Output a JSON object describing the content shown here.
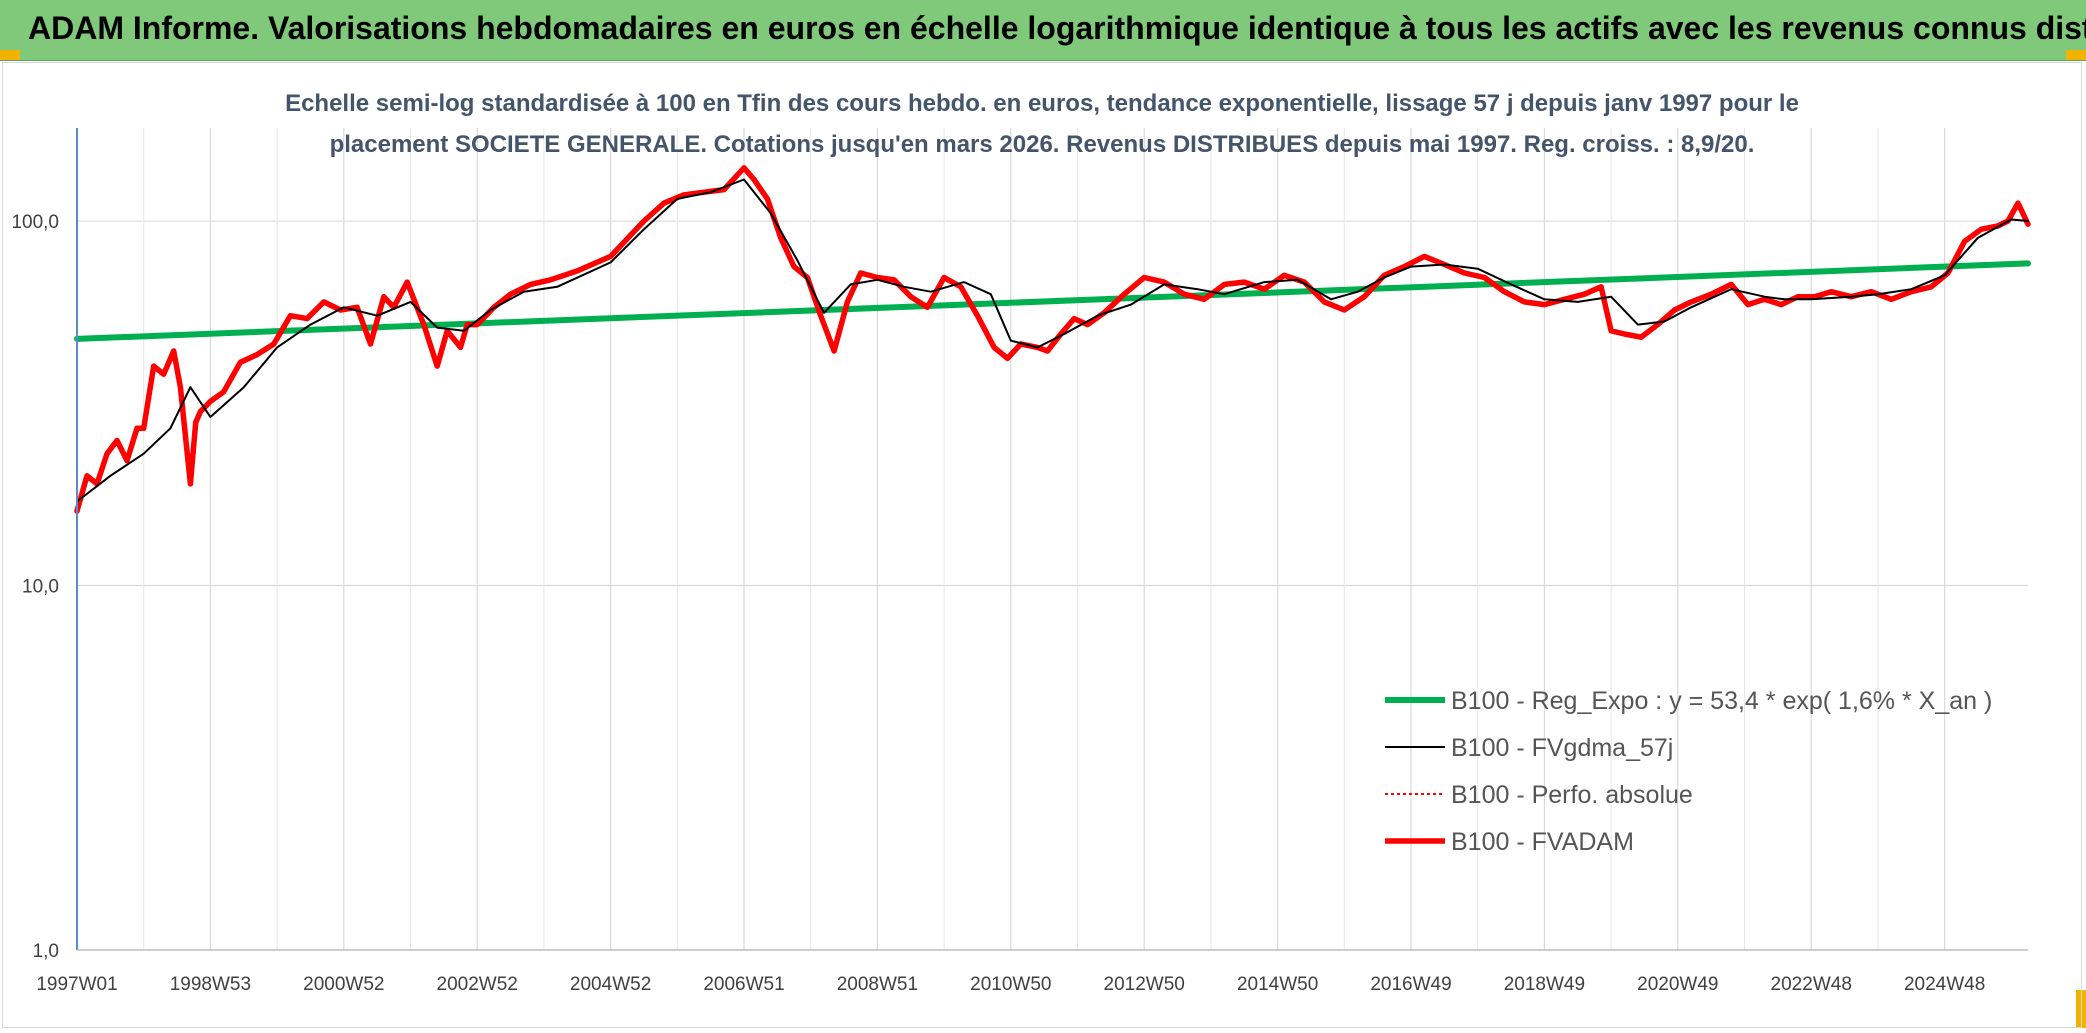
{
  "header": {
    "title": "ADAM Informe. Valorisations hebdomadaires en euros en échelle logarithmique identique à tous les actifs avec les revenus connus distribués"
  },
  "colors": {
    "banner": "#80c97a",
    "accent_corner": "#f2b300",
    "reg_line": "#00b050",
    "fvgdma_line": "#000000",
    "perfo_line": "#ff0000",
    "fvadam_line": "#ff0000"
  },
  "chart_data": {
    "type": "line",
    "title_lines": [
      "Echelle semi-log standardisée à 100 en Tfin des cours hebdo. en euros, tendance exponentielle, lissage 57 j depuis janv 1997 pour le",
      "placement SOCIETE GENERALE. Cotations jusqu'en mars 2026. Revenus DISTRIBUES depuis mai 1997. Reg. croiss. : 8,9/20."
    ],
    "y_scale": "log",
    "ylim": [
      1,
      180
    ],
    "y_ticks": [
      {
        "value": 1,
        "label": "1,0"
      },
      {
        "value": 10,
        "label": "10,0"
      },
      {
        "value": 100,
        "label": "100,0"
      }
    ],
    "xlim": [
      1997.0,
      2026.25
    ],
    "x_ticks": [
      {
        "value": 1997.0,
        "label": "1997W01"
      },
      {
        "value": 1999.0,
        "label": "1998W53"
      },
      {
        "value": 2001.0,
        "label": "2000W52"
      },
      {
        "value": 2003.0,
        "label": "2002W52"
      },
      {
        "value": 2005.0,
        "label": "2004W52"
      },
      {
        "value": 2007.0,
        "label": "2006W51"
      },
      {
        "value": 2009.0,
        "label": "2008W51"
      },
      {
        "value": 2011.0,
        "label": "2010W50"
      },
      {
        "value": 2013.0,
        "label": "2012W50"
      },
      {
        "value": 2015.0,
        "label": "2014W50"
      },
      {
        "value": 2017.0,
        "label": "2016W49"
      },
      {
        "value": 2019.0,
        "label": "2018W49"
      },
      {
        "value": 2021.0,
        "label": "2020W49"
      },
      {
        "value": 2023.0,
        "label": "2022W48"
      },
      {
        "value": 2025.0,
        "label": "2024W48"
      }
    ],
    "grid": "vertical",
    "legend_position": "bottom-right",
    "series": [
      {
        "name": "B100 - Reg_Expo : y = 53,4 * exp( 1,6% *  X_an )",
        "color": "#00b050",
        "style": "solid-thick",
        "x": [
          1997.0,
          2026.25
        ],
        "y": [
          47.5,
          76.5
        ]
      },
      {
        "name": "B100 - FVgdma_57j",
        "color": "#000000",
        "style": "solid-thin",
        "x": [
          1997.0,
          1997.5,
          1998.0,
          1998.4,
          1998.7,
          1999.0,
          1999.5,
          2000.0,
          2000.5,
          2001.0,
          2001.5,
          2002.0,
          2002.4,
          2002.8,
          2003.2,
          2003.7,
          2004.2,
          2005.0,
          2005.5,
          2006.0,
          2006.5,
          2007.0,
          2007.4,
          2007.8,
          2008.2,
          2008.6,
          2009.0,
          2009.4,
          2009.8,
          2010.3,
          2010.7,
          2011.0,
          2011.4,
          2011.8,
          2012.3,
          2012.8,
          2013.3,
          2013.8,
          2014.2,
          2014.8,
          2015.3,
          2015.8,
          2016.2,
          2016.6,
          2017.0,
          2017.5,
          2018.0,
          2018.5,
          2019.0,
          2019.5,
          2020.0,
          2020.4,
          2020.8,
          2021.2,
          2021.8,
          2022.3,
          2022.6,
          2023.0,
          2023.6,
          2024.0,
          2024.5,
          2025.0,
          2025.5,
          2026.0,
          2026.25
        ],
        "y": [
          17,
          20,
          23,
          27,
          35,
          29,
          35,
          45,
          52,
          58,
          55,
          60,
          51,
          50,
          57,
          64,
          66,
          77,
          95,
          115,
          120,
          130,
          105,
          78,
          56,
          67,
          69,
          66,
          64,
          68,
          63,
          47,
          45,
          49,
          55,
          59,
          67,
          65,
          63,
          68,
          69,
          61,
          64,
          70,
          75,
          76,
          74,
          67,
          61,
          60,
          62,
          52,
          53,
          58,
          65,
          62,
          61,
          61,
          62,
          63,
          65,
          71,
          90,
          101,
          100
        ]
      },
      {
        "name": "B100 - Perfo. absolue",
        "color": "#ff0000",
        "style": "dotted",
        "x": [],
        "y": []
      },
      {
        "name": "B100 - FVADAM",
        "color": "#ff0000",
        "style": "solid-thick",
        "x": [
          1997.0,
          1997.15,
          1997.3,
          1997.45,
          1997.6,
          1997.75,
          1997.9,
          1998.0,
          1998.15,
          1998.3,
          1998.45,
          1998.55,
          1998.7,
          1998.78,
          1998.85,
          1999.0,
          1999.2,
          1999.45,
          1999.7,
          1999.95,
          2000.2,
          2000.45,
          2000.7,
          2000.95,
          2001.2,
          2001.4,
          2001.6,
          2001.75,
          2001.95,
          2002.2,
          2002.4,
          2002.55,
          2002.75,
          2002.85,
          2003.0,
          2003.25,
          2003.5,
          2003.8,
          2004.1,
          2004.5,
          2005.0,
          2005.5,
          2005.8,
          2006.1,
          2006.4,
          2006.7,
          2007.0,
          2007.15,
          2007.35,
          2007.55,
          2007.75,
          2007.95,
          2008.15,
          2008.35,
          2008.55,
          2008.75,
          2009.0,
          2009.25,
          2009.5,
          2009.75,
          2010.0,
          2010.25,
          2010.5,
          2010.75,
          2010.95,
          2011.15,
          2011.4,
          2011.55,
          2011.75,
          2011.95,
          2012.15,
          2012.4,
          2012.7,
          2013.0,
          2013.3,
          2013.6,
          2013.9,
          2014.2,
          2014.5,
          2014.8,
          2015.1,
          2015.4,
          2015.7,
          2016.0,
          2016.3,
          2016.6,
          2016.9,
          2017.2,
          2017.5,
          2017.8,
          2018.1,
          2018.4,
          2018.7,
          2019.0,
          2019.3,
          2019.6,
          2019.85,
          2020.0,
          2020.2,
          2020.45,
          2020.7,
          2020.95,
          2021.2,
          2021.5,
          2021.8,
          2022.05,
          2022.3,
          2022.55,
          2022.8,
          2023.05,
          2023.3,
          2023.6,
          2023.9,
          2024.2,
          2024.5,
          2024.8,
          2025.05,
          2025.3,
          2025.55,
          2025.8,
          2025.95,
          2026.1,
          2026.25
        ],
        "y": [
          16,
          20,
          19,
          23,
          25,
          22,
          27,
          27,
          40,
          38,
          44,
          35,
          19,
          28,
          30,
          32,
          34,
          41,
          43,
          46,
          55,
          54,
          60,
          57,
          58,
          46,
          62,
          58,
          68,
          52,
          40,
          50,
          45,
          52,
          52,
          58,
          63,
          67,
          69,
          73,
          80,
          100,
          112,
          118,
          120,
          122,
          140,
          130,
          115,
          90,
          75,
          70,
          55,
          44,
          60,
          72,
          70,
          69,
          62,
          58,
          70,
          66,
          55,
          45,
          42,
          46,
          45,
          44,
          49,
          54,
          52,
          56,
          63,
          70,
          68,
          63,
          61,
          67,
          68,
          65,
          71,
          68,
          60,
          57,
          62,
          71,
          75,
          80,
          76,
          72,
          70,
          64,
          60,
          59,
          61,
          63,
          66,
          50,
          49,
          48,
          52,
          57,
          60,
          63,
          67,
          59,
          61,
          59,
          62,
          62,
          64,
          62,
          64,
          61,
          64,
          66,
          72,
          88,
          95,
          97,
          100,
          112,
          98
        ]
      }
    ]
  }
}
